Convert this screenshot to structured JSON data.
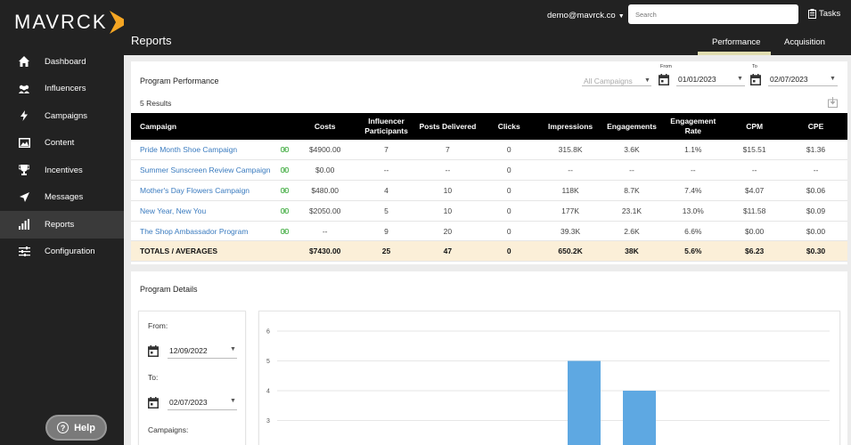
{
  "brand": {
    "name": "MAVRCK",
    "accent": "#f5a623"
  },
  "sidebar": {
    "items": [
      {
        "label": "Dashboard",
        "icon": "home-icon"
      },
      {
        "label": "Influencers",
        "icon": "people-icon"
      },
      {
        "label": "Campaigns",
        "icon": "bolt-icon"
      },
      {
        "label": "Content",
        "icon": "image-icon"
      },
      {
        "label": "Incentives",
        "icon": "trophy-icon"
      },
      {
        "label": "Messages",
        "icon": "send-icon"
      },
      {
        "label": "Reports",
        "icon": "bar-chart-icon",
        "active": true
      },
      {
        "label": "Configuration",
        "icon": "sliders-icon"
      }
    ],
    "help_label": "Help"
  },
  "header": {
    "title": "Reports",
    "user_email": "demo@mavrck.co",
    "search_placeholder": "Search",
    "tasks_label": "Tasks",
    "tabs": [
      {
        "label": "Performance",
        "active": true
      },
      {
        "label": "Acquisition",
        "active": false
      }
    ]
  },
  "performance": {
    "title": "Program Performance",
    "results": "5 Results",
    "campaign_filter": "All Campaigns",
    "from_label": "From",
    "from_value": "01/01/2023",
    "to_label": "To",
    "to_value": "02/07/2023",
    "columns": [
      "Campaign",
      "Costs",
      "Influencer Participants",
      "Posts Delivered",
      "Clicks",
      "Impressions",
      "Engagements",
      "Engagement Rate",
      "CPM",
      "CPE"
    ],
    "rows": [
      [
        "Pride Month Shoe Campaign",
        "$4900.00",
        "7",
        "7",
        "0",
        "315.8K",
        "3.6K",
        "1.1%",
        "$15.51",
        "$1.36"
      ],
      [
        "Summer Sunscreen Review Campaign",
        "$0.00",
        "--",
        "--",
        "0",
        "--",
        "--",
        "--",
        "--",
        "--"
      ],
      [
        "Mother's Day Flowers Campaign",
        "$480.00",
        "4",
        "10",
        "0",
        "118K",
        "8.7K",
        "7.4%",
        "$4.07",
        "$0.06"
      ],
      [
        "New Year, New You",
        "$2050.00",
        "5",
        "10",
        "0",
        "177K",
        "23.1K",
        "13.0%",
        "$11.58",
        "$0.09"
      ],
      [
        "The Shop Ambassador Program",
        "--",
        "9",
        "20",
        "0",
        "39.3K",
        "2.6K",
        "6.6%",
        "$0.00",
        "$0.00"
      ]
    ],
    "totals": [
      "TOTALS / AVERAGES",
      "$7430.00",
      "25",
      "47",
      "0",
      "650.2K",
      "38K",
      "5.6%",
      "$6.23",
      "$0.30"
    ]
  },
  "details": {
    "title": "Program Details",
    "from_label": "From:",
    "from_value": "12/09/2022",
    "to_label": "To:",
    "to_value": "02/07/2023",
    "campaigns_label": "Campaigns:"
  },
  "chart_data": {
    "type": "bar",
    "ytick_labels": [
      "6",
      "5",
      "4",
      "3"
    ],
    "ylim": [
      3,
      6
    ],
    "bar_color": "#5ea8e2",
    "values": [
      5,
      4
    ]
  }
}
